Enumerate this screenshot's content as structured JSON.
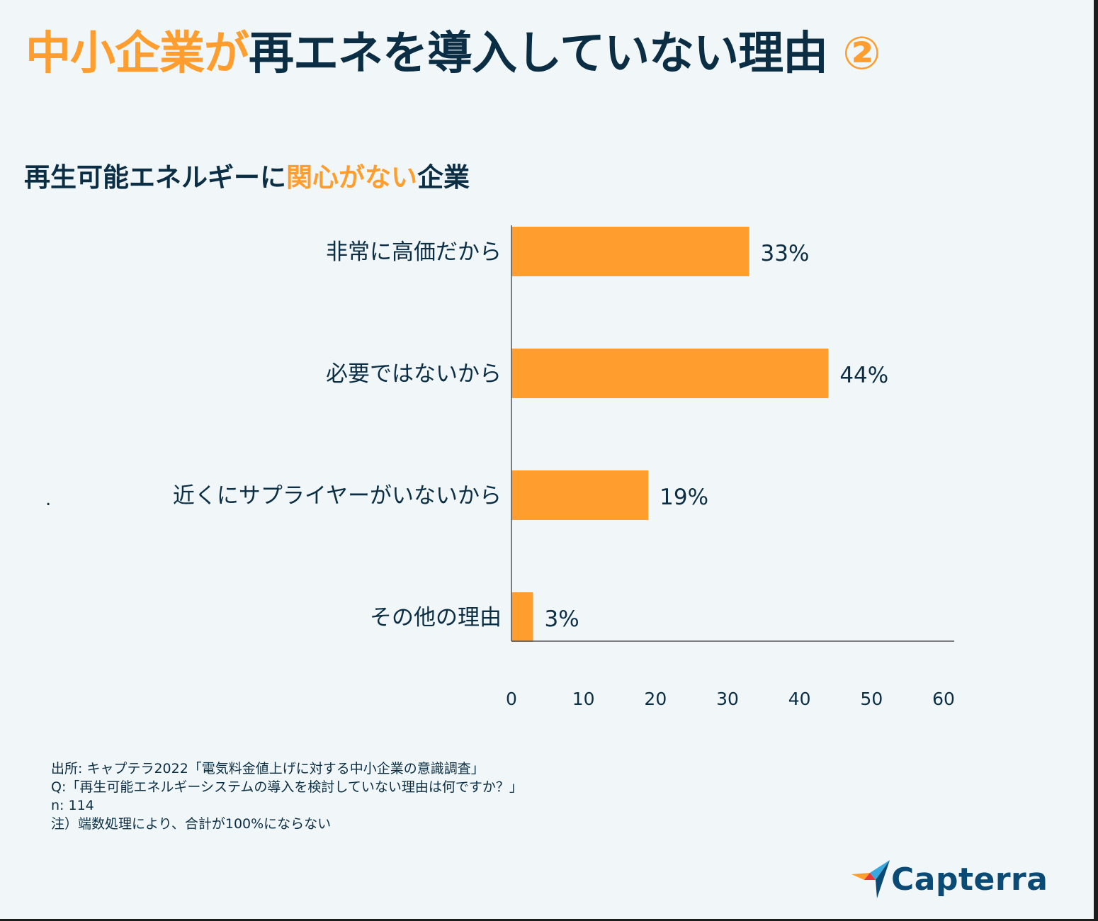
{
  "title": {
    "part1": "中小企業が",
    "part2": "再エネを導入していない理由",
    "part3": "②"
  },
  "subtitle": {
    "part1": "再生可能エネルギーに",
    "part2": "関心がない",
    "part3": "企業"
  },
  "colors": {
    "bar": "#ff9d2e",
    "navy": "#0b2e45",
    "orange": "#ff9d2e",
    "background": "#f1f7f8"
  },
  "chart_data": {
    "type": "bar",
    "orientation": "horizontal",
    "categories": [
      "非常に高価だから",
      "必要ではないから",
      "近くにサプライヤーがいないから",
      "その他の理由"
    ],
    "values": [
      33,
      44,
      19,
      3
    ],
    "value_labels": [
      "33%",
      "44%",
      "19%",
      "3%"
    ],
    "xlim": [
      0,
      60
    ],
    "xticks": [
      0,
      10,
      20,
      30,
      40,
      50,
      60
    ],
    "xtick_labels": [
      "0",
      "10",
      "20",
      "30",
      "40",
      "50",
      "60"
    ],
    "title": "再生可能エネルギーに関心がない企業",
    "grid": false
  },
  "stray_mark": ".",
  "notes": [
    "出所: キャプテラ2022「電気料金値上げに対する中小企業の意識調査」",
    "Q:「再生可能エネルギーシステムの導入を検討していない理由は何ですか？」",
    "n: 114",
    "注）端数処理により、合計が100%にならない"
  ],
  "logo": {
    "text": "Capterra",
    "icon": "capterra-arrow-icon"
  }
}
